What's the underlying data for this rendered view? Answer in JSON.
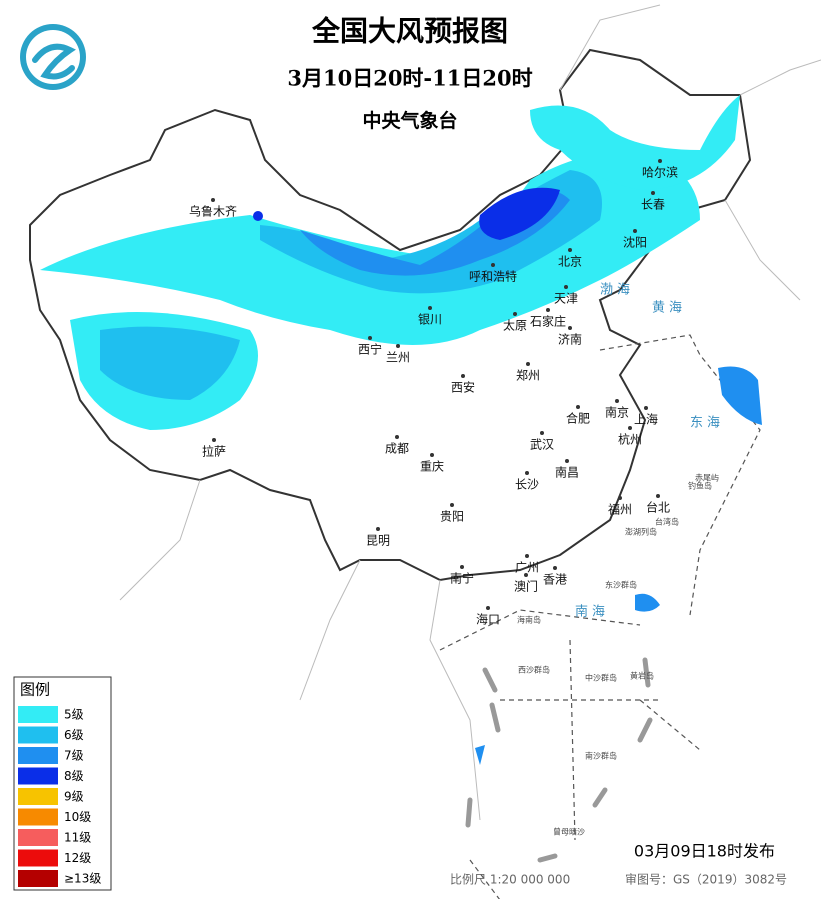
{
  "title": "全国大风预报图",
  "subtitle": "3月10日20时-11日20时",
  "issuer": "中央气象台",
  "cities": [
    "乌鲁木齐",
    "哈尔滨",
    "长春",
    "沈阳",
    "北京",
    "呼和浩特",
    "天津",
    "银川",
    "太原",
    "石家庄",
    "济南",
    "西宁",
    "兰州",
    "郑州",
    "西安",
    "合肥",
    "南京",
    "上海",
    "杭州",
    "武汉",
    "成都",
    "重庆",
    "拉萨",
    "南昌",
    "长沙",
    "福州",
    "台北",
    "贵阳",
    "昆明",
    "南宁",
    "广州",
    "澳门",
    "香港",
    "海口"
  ],
  "seas": [
    "渤海",
    "黄海",
    "东海",
    "南海"
  ],
  "islands": [
    "钓鱼岛",
    "赤尾屿",
    "台湾岛",
    "澎湖列岛",
    "东沙群岛",
    "海南岛",
    "西沙群岛",
    "中沙群岛",
    "黄岩岛",
    "南沙群岛",
    "曾母暗沙"
  ],
  "legend": {
    "title": "图例",
    "items": [
      {
        "label": "5级",
        "color": "#33ecf5"
      },
      {
        "label": "6级",
        "color": "#1fbfef"
      },
      {
        "label": "7级",
        "color": "#1f8ff0"
      },
      {
        "label": "8级",
        "color": "#0a2ee8"
      },
      {
        "label": "9级",
        "color": "#f7c300"
      },
      {
        "label": "10级",
        "color": "#f78a00"
      },
      {
        "label": "11级",
        "color": "#f65d5d"
      },
      {
        "label": "12级",
        "color": "#ec0c0c"
      },
      {
        "label": "≥13级",
        "color": "#b40000"
      }
    ]
  },
  "footer": {
    "issued": "03月09日18时发布",
    "scale": "比例尺 1:20 000 000",
    "review": "审图号：GS（2019）3082号"
  }
}
